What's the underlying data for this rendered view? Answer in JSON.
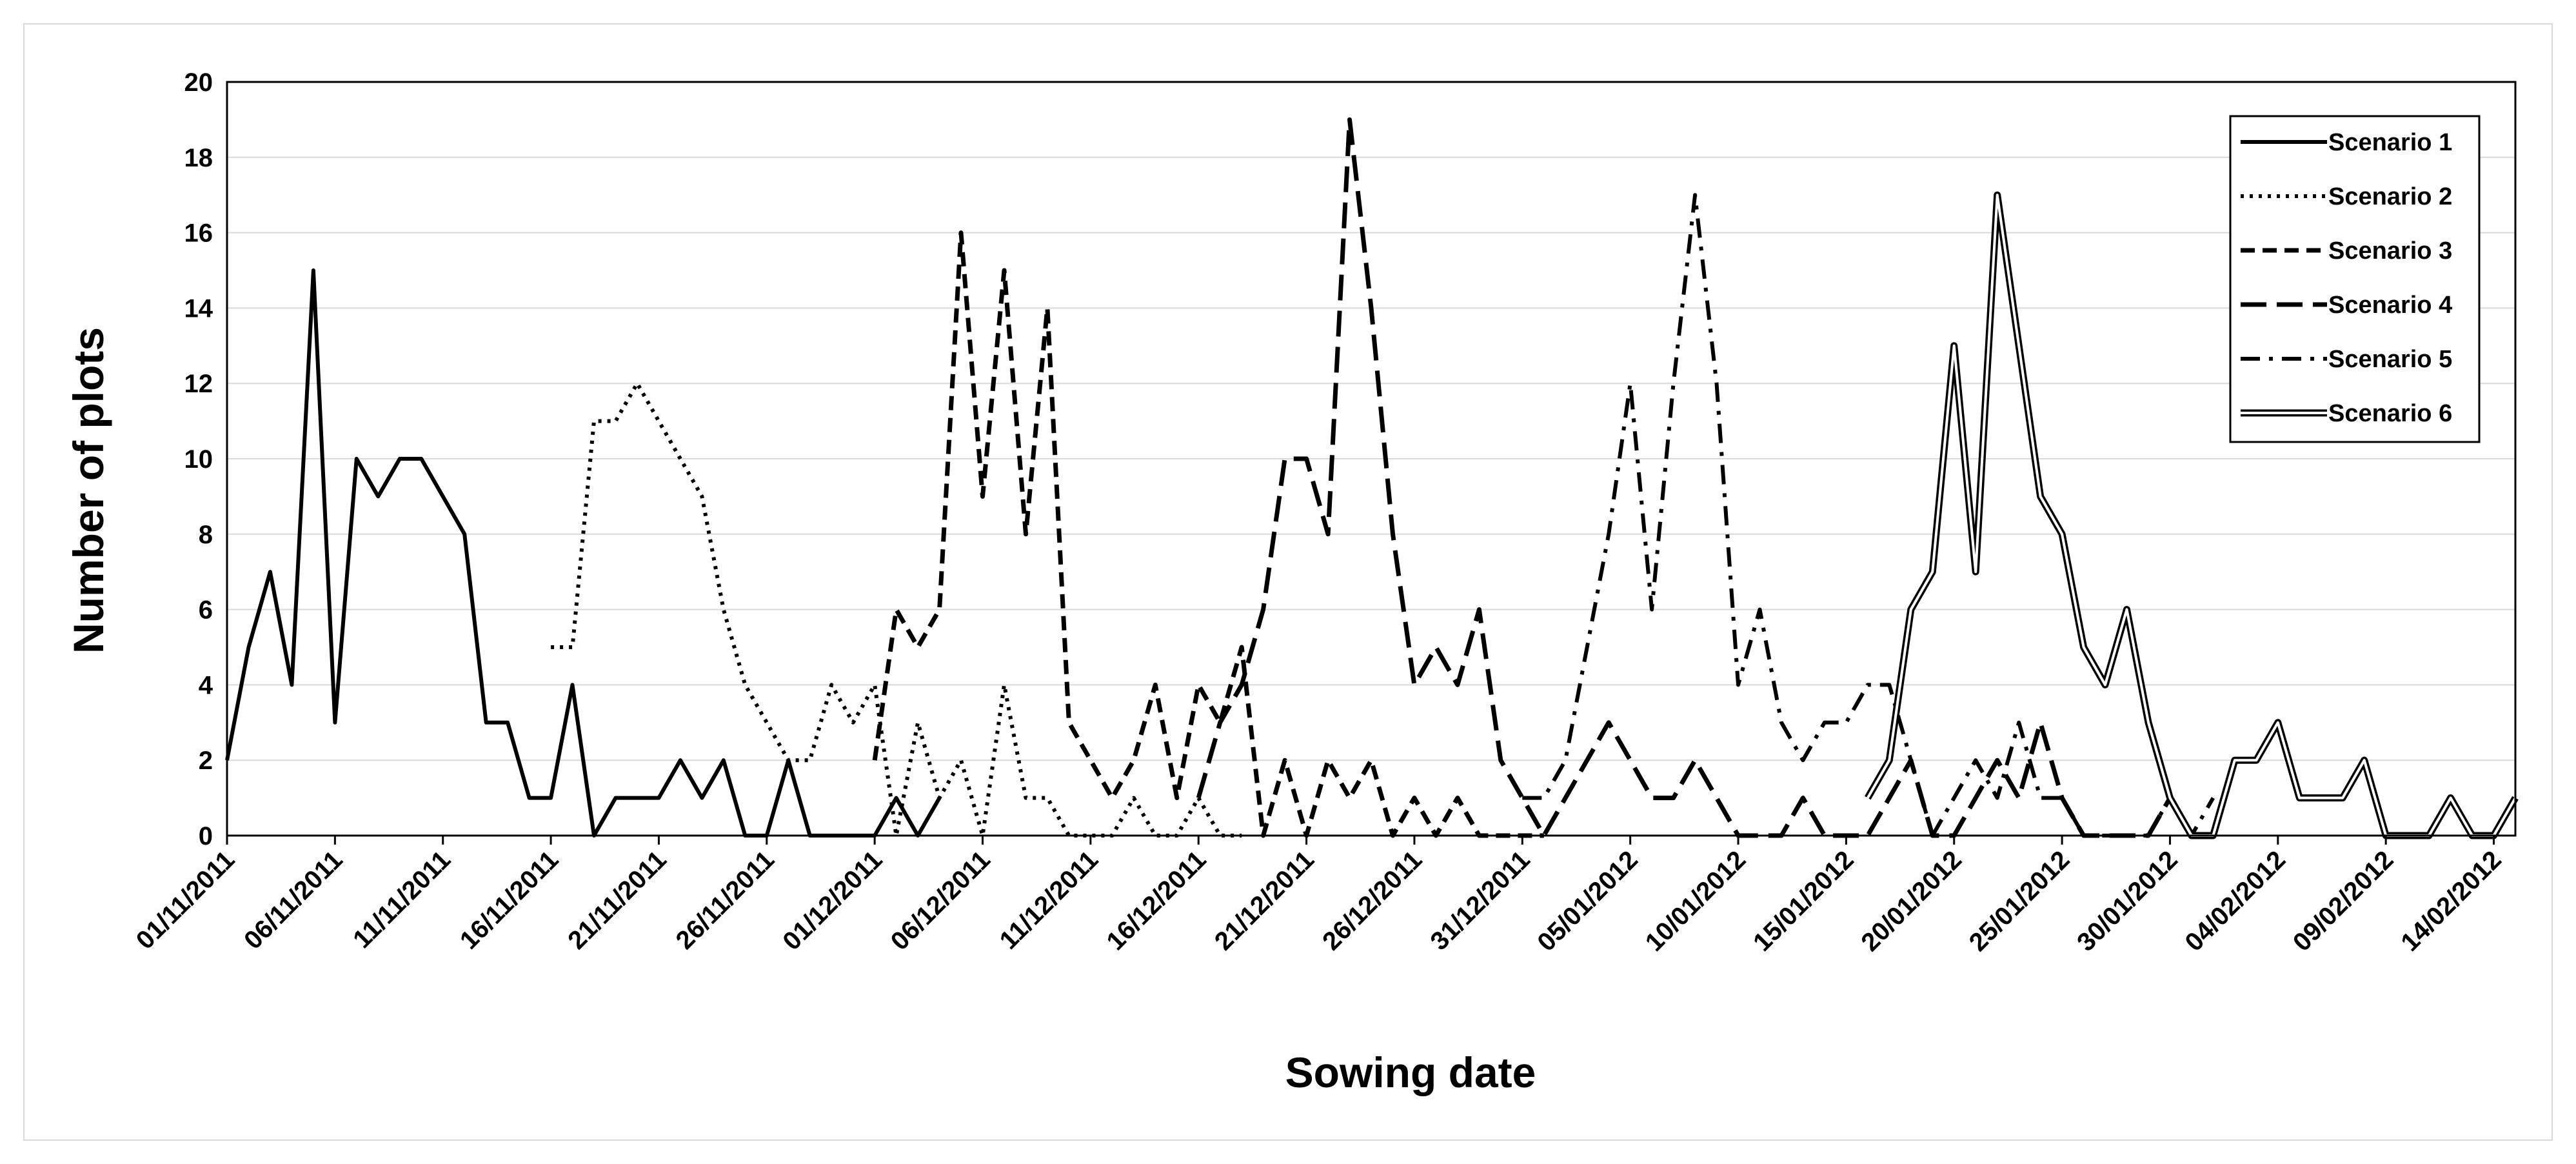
{
  "chart_data": {
    "type": "line",
    "xlabel": "Sowing date",
    "ylabel": "Number of plots",
    "ylim": [
      0,
      20
    ],
    "y_ticks": [
      "0",
      "2",
      "4",
      "6",
      "8",
      "10",
      "12",
      "14",
      "16",
      "18",
      "20"
    ],
    "x_tick_labels": [
      "01/11/2011",
      "06/11/2011",
      "11/11/2011",
      "16/11/2011",
      "21/11/2011",
      "26/11/2011",
      "01/12/2011",
      "06/12/2011",
      "11/12/2011",
      "16/12/2011",
      "21/12/2011",
      "26/12/2011",
      "31/12/2011",
      "05/01/2012",
      "10/01/2012",
      "15/01/2012",
      "20/01/2012",
      "25/01/2012",
      "30/01/2012",
      "04/02/2012",
      "09/02/2012",
      "14/02/2012"
    ],
    "x_start": "01/11/2011",
    "x_end": "15/02/2012",
    "grid": "horizontal",
    "legend_position": "top-right",
    "series": [
      {
        "name": "Scenario 1",
        "style": "solid",
        "x": [
          "01/11/2011",
          "02/11/2011",
          "03/11/2011",
          "04/11/2011",
          "05/11/2011",
          "06/11/2011",
          "07/11/2011",
          "08/11/2011",
          "09/11/2011",
          "10/11/2011",
          "11/11/2011",
          "12/11/2011",
          "13/11/2011",
          "14/11/2011",
          "15/11/2011",
          "16/11/2011",
          "17/11/2011",
          "18/11/2011",
          "19/11/2011",
          "20/11/2011",
          "21/11/2011",
          "22/11/2011",
          "23/11/2011",
          "24/11/2011",
          "25/11/2011",
          "26/11/2011",
          "27/11/2011",
          "28/11/2011",
          "29/11/2011",
          "30/11/2011",
          "01/12/2011",
          "02/12/2011",
          "03/12/2011",
          "04/12/2011"
        ],
        "values": [
          2,
          5,
          7,
          4,
          15,
          3,
          10,
          9,
          10,
          10,
          9,
          8,
          3,
          3,
          1,
          1,
          4,
          0,
          1,
          1,
          1,
          2,
          1,
          2,
          0,
          0,
          2,
          0,
          0,
          0,
          0,
          1,
          0,
          1
        ]
      },
      {
        "name": "Scenario 2",
        "style": "dotted",
        "x": [
          "16/11/2011",
          "17/11/2011",
          "18/11/2011",
          "19/11/2011",
          "20/11/2011",
          "21/11/2011",
          "22/11/2011",
          "23/11/2011",
          "24/11/2011",
          "25/11/2011",
          "26/11/2011",
          "27/11/2011",
          "28/11/2011",
          "29/11/2011",
          "30/11/2011",
          "01/12/2011",
          "02/12/2011",
          "03/12/2011",
          "04/12/2011",
          "05/12/2011",
          "06/12/2011",
          "07/12/2011",
          "08/12/2011",
          "09/12/2011",
          "10/12/2011",
          "11/12/2011",
          "12/12/2011",
          "13/12/2011",
          "14/12/2011",
          "15/12/2011",
          "16/12/2011",
          "17/12/2011",
          "18/12/2011"
        ],
        "values": [
          5,
          5,
          11,
          11,
          12,
          11,
          10,
          9,
          6,
          4,
          3,
          2,
          2,
          4,
          3,
          4,
          0,
          3,
          1,
          2,
          0,
          4,
          1,
          1,
          0,
          0,
          0,
          1,
          0,
          0,
          1,
          0,
          0
        ]
      },
      {
        "name": "Scenario 3",
        "style": "dashed",
        "x": [
          "01/12/2011",
          "02/12/2011",
          "03/12/2011",
          "04/12/2011",
          "05/12/2011",
          "06/12/2011",
          "07/12/2011",
          "08/12/2011",
          "09/12/2011",
          "10/12/2011",
          "11/12/2011",
          "12/12/2011",
          "13/12/2011",
          "14/12/2011",
          "15/12/2011",
          "16/12/2011",
          "17/12/2011",
          "18/12/2011",
          "19/12/2011",
          "20/12/2011",
          "21/12/2011",
          "22/12/2011",
          "23/12/2011",
          "24/12/2011",
          "25/12/2011",
          "26/12/2011",
          "27/12/2011",
          "28/12/2011",
          "29/12/2011",
          "30/12/2011",
          "31/12/2011",
          "01/01/2012"
        ],
        "values": [
          2,
          6,
          5,
          6,
          16,
          9,
          15,
          8,
          14,
          3,
          2,
          1,
          2,
          4,
          1,
          4,
          3,
          5,
          0,
          2,
          0,
          2,
          1,
          2,
          0,
          1,
          0,
          1,
          0,
          0,
          0,
          0
        ]
      },
      {
        "name": "Scenario 4",
        "style": "long-dashed",
        "x": [
          "16/12/2011",
          "17/12/2011",
          "18/12/2011",
          "19/12/2011",
          "20/12/2011",
          "21/12/2011",
          "22/12/2011",
          "23/12/2011",
          "24/12/2011",
          "25/12/2011",
          "26/12/2011",
          "27/12/2011",
          "28/12/2011",
          "29/12/2011",
          "30/12/2011",
          "31/12/2011",
          "01/01/2012",
          "02/01/2012",
          "03/01/2012",
          "04/01/2012",
          "05/01/2012",
          "06/01/2012",
          "07/01/2012",
          "08/01/2012",
          "09/01/2012",
          "10/01/2012",
          "11/01/2012",
          "12/01/2012",
          "13/01/2012",
          "14/01/2012",
          "15/01/2012",
          "16/01/2012",
          "17/01/2012",
          "18/01/2012",
          "19/01/2012",
          "20/01/2012",
          "21/01/2012",
          "22/01/2012",
          "23/01/2012",
          "24/01/2012",
          "25/01/2012",
          "26/01/2012",
          "27/01/2012",
          "28/01/2012",
          "29/01/2012",
          "30/01/2012"
        ],
        "values": [
          1,
          3,
          4,
          6,
          10,
          10,
          8,
          19,
          14,
          8,
          4,
          5,
          4,
          6,
          2,
          1,
          0,
          1,
          2,
          3,
          2,
          1,
          1,
          2,
          1,
          0,
          0,
          0,
          1,
          0,
          0,
          0,
          1,
          2,
          0,
          0,
          1,
          2,
          1,
          3,
          1,
          0,
          0,
          0,
          0,
          1
        ]
      },
      {
        "name": "Scenario 5",
        "style": "dash-dot",
        "x": [
          "31/12/2011",
          "01/01/2012",
          "02/01/2012",
          "03/01/2012",
          "04/01/2012",
          "05/01/2012",
          "06/01/2012",
          "07/01/2012",
          "08/01/2012",
          "09/01/2012",
          "10/01/2012",
          "11/01/2012",
          "12/01/2012",
          "13/01/2012",
          "14/01/2012",
          "15/01/2012",
          "16/01/2012",
          "17/01/2012",
          "18/01/2012",
          "19/01/2012",
          "20/01/2012",
          "21/01/2012",
          "22/01/2012",
          "23/01/2012",
          "24/01/2012",
          "25/01/2012",
          "26/01/2012",
          "27/01/2012",
          "28/01/2012",
          "29/01/2012",
          "30/01/2012",
          "31/01/2012",
          "01/02/2012"
        ],
        "values": [
          1,
          1,
          2,
          5,
          8,
          12,
          6,
          12,
          17,
          12,
          4,
          6,
          3,
          2,
          3,
          3,
          4,
          4,
          2,
          0,
          1,
          2,
          1,
          3,
          1,
          1,
          0,
          0,
          0,
          0,
          1,
          0,
          1
        ]
      },
      {
        "name": "Scenario 6",
        "style": "double",
        "x": [
          "16/01/2012",
          "17/01/2012",
          "18/01/2012",
          "19/01/2012",
          "20/01/2012",
          "21/01/2012",
          "22/01/2012",
          "23/01/2012",
          "24/01/2012",
          "25/01/2012",
          "26/01/2012",
          "27/01/2012",
          "28/01/2012",
          "29/01/2012",
          "30/01/2012",
          "31/01/2012",
          "01/02/2012",
          "02/02/2012",
          "03/02/2012",
          "04/02/2012",
          "05/02/2012",
          "06/02/2012",
          "07/02/2012",
          "08/02/2012",
          "09/02/2012",
          "10/02/2012",
          "11/02/2012",
          "12/02/2012",
          "13/02/2012",
          "14/02/2012",
          "15/02/2012"
        ],
        "values": [
          1,
          2,
          6,
          7,
          13,
          7,
          17,
          13,
          9,
          8,
          5,
          4,
          6,
          3,
          1,
          0,
          0,
          2,
          2,
          3,
          1,
          1,
          1,
          2,
          0,
          0,
          0,
          1,
          0,
          0,
          1
        ]
      }
    ]
  },
  "colors": {
    "line": "#000000",
    "grid": "#d9d9d9",
    "frame": "#d9d9d9"
  }
}
